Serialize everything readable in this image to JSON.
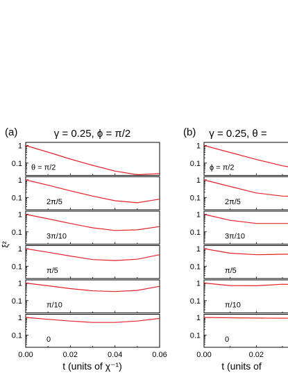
{
  "chart_data": [
    {
      "type": "line",
      "panel_label": "(a)",
      "title": "γ = 0.25, ϕ = π/2",
      "xlabel": "t (units of χ⁻¹)",
      "ylabel": "ξ²",
      "yscale": "log",
      "xlim": [
        0,
        0.06
      ],
      "ylim": [
        0.02,
        1.5
      ],
      "x_ticks": [
        "0.00",
        "0.02",
        "0.04",
        "0.06"
      ],
      "y_ticks": [
        "0.1",
        "1"
      ],
      "line_color": "#e8202a",
      "x": [
        0,
        0.01,
        0.02,
        0.03,
        0.04,
        0.05,
        0.06
      ],
      "series": [
        {
          "name": "θ = π/2",
          "values": [
            1.0,
            0.42,
            0.17,
            0.075,
            0.035,
            0.022,
            0.025
          ]
        },
        {
          "name": "2π/5",
          "values": [
            1.0,
            0.5,
            0.24,
            0.12,
            0.065,
            0.05,
            0.08
          ]
        },
        {
          "name": "3π/10",
          "values": [
            1.0,
            0.55,
            0.3,
            0.17,
            0.12,
            0.13,
            0.2
          ]
        },
        {
          "name": "π/5",
          "values": [
            1.0,
            0.62,
            0.38,
            0.24,
            0.21,
            0.25,
            0.45
          ]
        },
        {
          "name": "π/10",
          "values": [
            1.0,
            0.7,
            0.48,
            0.36,
            0.33,
            0.38,
            0.65
          ]
        },
        {
          "name": "0",
          "values": [
            1.0,
            0.78,
            0.62,
            0.52,
            0.52,
            0.62,
            0.88
          ]
        }
      ]
    },
    {
      "type": "line",
      "panel_label": "(b)",
      "title": "γ = 0.25, θ = ",
      "xlabel": "t (units of",
      "ylabel": "",
      "yscale": "log",
      "xlim": [
        0,
        0.06
      ],
      "ylim": [
        0.02,
        1.5
      ],
      "x_ticks": [
        "0.00",
        "0.02",
        "0.0"
      ],
      "y_ticks": [
        "0.1",
        "1"
      ],
      "line_color": "#e8202a",
      "x": [
        0,
        0.01,
        0.02,
        0.03,
        0.04,
        0.05,
        0.06
      ],
      "series": [
        {
          "name": "ϕ = π/2",
          "values": [
            1.0,
            0.4,
            0.16,
            0.07,
            0.04,
            0.03,
            0.03
          ]
        },
        {
          "name": "2π/5",
          "values": [
            1.0,
            0.42,
            0.18,
            0.12,
            0.11,
            0.12,
            0.14
          ]
        },
        {
          "name": "3π/10",
          "values": [
            1.0,
            0.45,
            0.3,
            0.3,
            0.3,
            0.32,
            0.34
          ]
        },
        {
          "name": "π/5",
          "values": [
            1.0,
            0.55,
            0.45,
            0.48,
            0.48,
            0.48,
            0.5
          ]
        },
        {
          "name": "π/10",
          "values": [
            1.0,
            0.72,
            0.7,
            0.85,
            0.8,
            0.78,
            0.8
          ]
        },
        {
          "name": "0",
          "values": [
            1.0,
            0.95,
            0.92,
            0.9,
            0.92,
            0.95,
            0.96
          ]
        }
      ]
    }
  ]
}
